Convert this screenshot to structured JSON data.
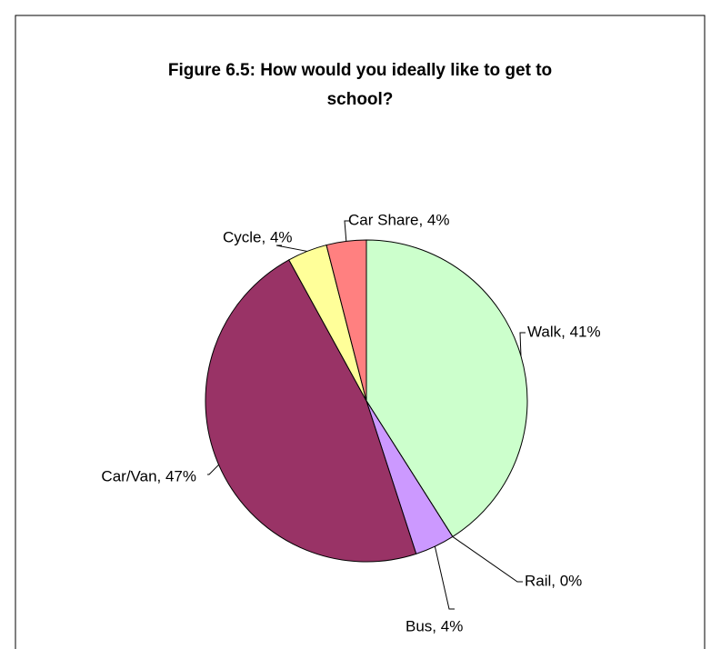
{
  "chart_data": {
    "type": "pie",
    "title": [
      "Figure 6.5: How would you ideally like to get to",
      "school?"
    ],
    "categories": [
      "Walk",
      "Rail",
      "Bus",
      "Car/Van",
      "Cycle",
      "Car Share"
    ],
    "values": [
      41,
      0,
      4,
      47,
      4,
      4
    ],
    "value_labels": [
      "Walk, 41%",
      "Rail, 0%",
      "Bus, 4%",
      "Car/Van, 47%",
      "Cycle, 4%",
      "Car Share, 4%"
    ],
    "colors": [
      "#ccffcc",
      "#ffffff",
      "#cc99ff",
      "#993366",
      "#ffff99",
      "#ff8080"
    ]
  }
}
